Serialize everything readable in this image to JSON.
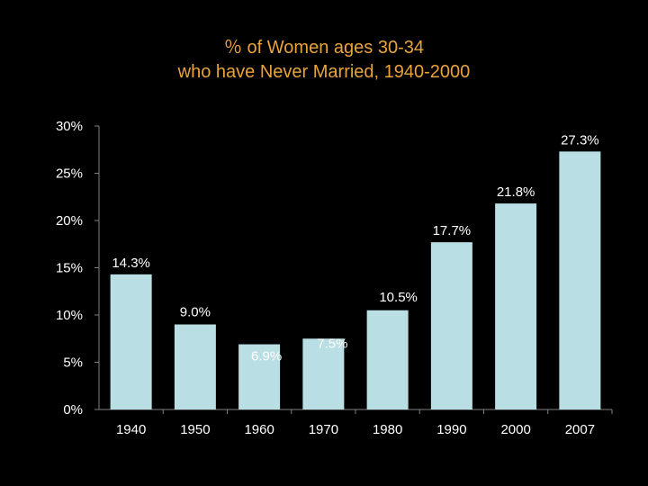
{
  "chart_data": {
    "type": "bar",
    "title": "％ of Women ages 30-34",
    "subtitle": "who have Never Married, 1940-2000",
    "xlabel": "",
    "ylabel": "",
    "categories": [
      "1940",
      "1950",
      "1960",
      "1970",
      "1980",
      "1990",
      "2000",
      "2007"
    ],
    "values": [
      14.3,
      9.0,
      6.9,
      7.5,
      10.5,
      17.7,
      21.8,
      27.3
    ],
    "data_labels": [
      "14.3%",
      "9.0%",
      "6.9%",
      "7.5%",
      "10.5%",
      "17.7%",
      "21.8%",
      "27.3%"
    ],
    "ylim": [
      0,
      30
    ],
    "yticks": [
      0,
      5,
      10,
      15,
      20,
      25,
      30
    ],
    "ytick_labels": [
      "0%",
      "5%",
      "10%",
      "15%",
      "20%",
      "25%",
      "30%"
    ],
    "grid": false,
    "legend": "none",
    "colors": {
      "background": "#000000",
      "plot_area": "#000000",
      "bar": "#b9dfe4",
      "axis": "#808080",
      "title": "#e8a33c",
      "text": "#ffffff"
    }
  }
}
